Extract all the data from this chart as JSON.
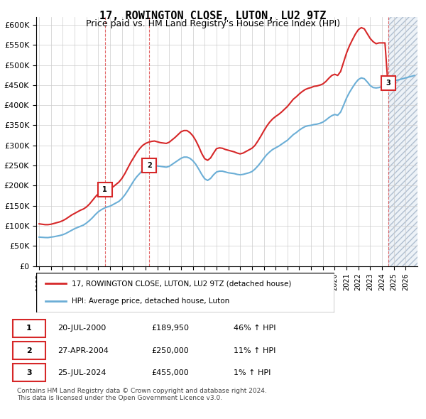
{
  "title": "17, ROWINGTON CLOSE, LUTON, LU2 9TZ",
  "subtitle": "Price paid vs. HM Land Registry's House Price Index (HPI)",
  "title_fontsize": 11,
  "subtitle_fontsize": 9,
  "ylabel": "",
  "ylim": [
    0,
    620000
  ],
  "yticks": [
    0,
    50000,
    100000,
    150000,
    200000,
    250000,
    300000,
    350000,
    400000,
    450000,
    500000,
    550000,
    600000
  ],
  "ytick_labels": [
    "£0",
    "£50K",
    "£100K",
    "£150K",
    "£200K",
    "£250K",
    "£300K",
    "£350K",
    "£400K",
    "£450K",
    "£500K",
    "£550K",
    "£600K"
  ],
  "hpi_line_color": "#6baed6",
  "price_line_color": "#d62728",
  "marker_box_color": "#d62728",
  "background_color": "#ffffff",
  "grid_color": "#cccccc",
  "hatch_color": "#d0d8e8",
  "hpi_data": {
    "years": [
      1995.0,
      1995.25,
      1995.5,
      1995.75,
      1996.0,
      1996.25,
      1996.5,
      1996.75,
      1997.0,
      1997.25,
      1997.5,
      1997.75,
      1998.0,
      1998.25,
      1998.5,
      1998.75,
      1999.0,
      1999.25,
      1999.5,
      1999.75,
      2000.0,
      2000.25,
      2000.5,
      2000.75,
      2001.0,
      2001.25,
      2001.5,
      2001.75,
      2002.0,
      2002.25,
      2002.5,
      2002.75,
      2003.0,
      2003.25,
      2003.5,
      2003.75,
      2004.0,
      2004.25,
      2004.5,
      2004.75,
      2005.0,
      2005.25,
      2005.5,
      2005.75,
      2006.0,
      2006.25,
      2006.5,
      2006.75,
      2007.0,
      2007.25,
      2007.5,
      2007.75,
      2008.0,
      2008.25,
      2008.5,
      2008.75,
      2009.0,
      2009.25,
      2009.5,
      2009.75,
      2010.0,
      2010.25,
      2010.5,
      2010.75,
      2011.0,
      2011.25,
      2011.5,
      2011.75,
      2012.0,
      2012.25,
      2012.5,
      2012.75,
      2013.0,
      2013.25,
      2013.5,
      2013.75,
      2014.0,
      2014.25,
      2014.5,
      2014.75,
      2015.0,
      2015.25,
      2015.5,
      2015.75,
      2016.0,
      2016.25,
      2016.5,
      2016.75,
      2017.0,
      2017.25,
      2017.5,
      2017.75,
      2018.0,
      2018.25,
      2018.5,
      2018.75,
      2019.0,
      2019.25,
      2019.5,
      2019.75,
      2020.0,
      2020.25,
      2020.5,
      2020.75,
      2021.0,
      2021.25,
      2021.5,
      2021.75,
      2022.0,
      2022.25,
      2022.5,
      2022.75,
      2023.0,
      2023.25,
      2023.5,
      2023.75,
      2024.0,
      2024.25,
      2024.5,
      2024.75,
      2025.0,
      2025.25,
      2025.5,
      2025.75,
      2026.0,
      2026.25,
      2026.5,
      2026.75
    ],
    "values": [
      72000,
      71500,
      71000,
      70800,
      72000,
      73000,
      74500,
      76000,
      78000,
      81000,
      85000,
      89000,
      93000,
      96000,
      99000,
      102000,
      107000,
      113000,
      120000,
      128000,
      135000,
      140000,
      144000,
      147000,
      149000,
      153000,
      157000,
      161000,
      168000,
      177000,
      188000,
      200000,
      212000,
      222000,
      230000,
      238000,
      244000,
      247000,
      249000,
      250000,
      249000,
      248000,
      247000,
      246000,
      248000,
      253000,
      258000,
      263000,
      268000,
      271000,
      271000,
      268000,
      262000,
      253000,
      241000,
      228000,
      217000,
      213000,
      218000,
      227000,
      234000,
      236000,
      236000,
      234000,
      232000,
      231000,
      230000,
      228000,
      227000,
      228000,
      230000,
      232000,
      235000,
      241000,
      249000,
      258000,
      268000,
      277000,
      284000,
      290000,
      294000,
      298000,
      303000,
      308000,
      313000,
      320000,
      327000,
      332000,
      338000,
      343000,
      347000,
      349000,
      350000,
      352000,
      353000,
      355000,
      358000,
      363000,
      369000,
      374000,
      377000,
      375000,
      383000,
      400000,
      418000,
      432000,
      444000,
      455000,
      464000,
      468000,
      466000,
      458000,
      449000,
      444000,
      443000,
      444000,
      447000,
      451000,
      455000,
      458000,
      460000,
      462000,
      464000,
      466000,
      468000,
      470000,
      472000,
      474000
    ]
  },
  "price_data": {
    "years": [
      1995.0,
      1995.25,
      1995.5,
      1995.75,
      1996.0,
      1996.25,
      1996.5,
      1996.75,
      1997.0,
      1997.25,
      1997.5,
      1997.75,
      1998.0,
      1998.25,
      1998.5,
      1998.75,
      1999.0,
      1999.25,
      1999.5,
      1999.75,
      2000.0,
      2000.25,
      2000.5,
      2000.75,
      2001.0,
      2001.25,
      2001.5,
      2001.75,
      2002.0,
      2002.25,
      2002.5,
      2002.75,
      2003.0,
      2003.25,
      2003.5,
      2003.75,
      2004.0,
      2004.25,
      2004.5,
      2004.75,
      2005.0,
      2005.25,
      2005.5,
      2005.75,
      2006.0,
      2006.25,
      2006.5,
      2006.75,
      2007.0,
      2007.25,
      2007.5,
      2007.75,
      2008.0,
      2008.25,
      2008.5,
      2008.75,
      2009.0,
      2009.25,
      2009.5,
      2009.75,
      2010.0,
      2010.25,
      2010.5,
      2010.75,
      2011.0,
      2011.25,
      2011.5,
      2011.75,
      2012.0,
      2012.25,
      2012.5,
      2012.75,
      2013.0,
      2013.25,
      2013.5,
      2013.75,
      2014.0,
      2014.25,
      2014.5,
      2014.75,
      2015.0,
      2015.25,
      2015.5,
      2015.75,
      2016.0,
      2016.25,
      2016.5,
      2016.75,
      2017.0,
      2017.25,
      2017.5,
      2017.75,
      2018.0,
      2018.25,
      2018.5,
      2018.75,
      2019.0,
      2019.25,
      2019.5,
      2019.75,
      2020.0,
      2020.25,
      2020.5,
      2020.75,
      2021.0,
      2021.25,
      2021.5,
      2021.75,
      2022.0,
      2022.25,
      2022.5,
      2022.75,
      2023.0,
      2023.25,
      2023.5,
      2023.75,
      2024.0,
      2024.25,
      2024.5,
      2024.75
    ],
    "values": [
      105000,
      104000,
      103000,
      103000,
      104000,
      106000,
      108000,
      110000,
      113000,
      117000,
      122000,
      127000,
      131000,
      135000,
      139000,
      142000,
      147000,
      154000,
      163000,
      172000,
      180000,
      185000,
      189950,
      189950,
      192000,
      197000,
      203000,
      209000,
      218000,
      230000,
      244000,
      258000,
      270000,
      282000,
      292000,
      300000,
      305000,
      308000,
      310000,
      311000,
      309000,
      307000,
      306000,
      305000,
      308000,
      314000,
      320000,
      327000,
      334000,
      337000,
      337000,
      332000,
      324000,
      312000,
      297000,
      280000,
      267000,
      263000,
      269000,
      281000,
      292000,
      294000,
      293000,
      290000,
      288000,
      286000,
      284000,
      281000,
      279000,
      281000,
      285000,
      289000,
      293000,
      300000,
      311000,
      323000,
      336000,
      348000,
      358000,
      366000,
      372000,
      377000,
      383000,
      390000,
      397000,
      406000,
      415000,
      421000,
      428000,
      434000,
      439000,
      442000,
      444000,
      447000,
      448000,
      450000,
      453000,
      459000,
      467000,
      474000,
      477000,
      474000,
      484000,
      507000,
      530000,
      548000,
      563000,
      577000,
      588000,
      593000,
      590000,
      578000,
      566000,
      558000,
      553000,
      555000,
      555000,
      555000,
      453000,
      453000
    ]
  },
  "sale_points": [
    {
      "year": 2000.55,
      "price": 189950,
      "label": "1"
    },
    {
      "year": 2004.32,
      "price": 250000,
      "label": "2"
    },
    {
      "year": 2024.55,
      "price": 455000,
      "label": "3"
    }
  ],
  "hatch_start_year": 2024.55,
  "hatch_end_year": 2027.0,
  "legend_line1": "17, ROWINGTON CLOSE, LUTON, LU2 9TZ (detached house)",
  "legend_line2": "HPI: Average price, detached house, Luton",
  "table_entries": [
    {
      "num": "1",
      "date": "20-JUL-2000",
      "price": "£189,950",
      "change": "46% ↑ HPI"
    },
    {
      "num": "2",
      "date": "27-APR-2004",
      "price": "£250,000",
      "change": "11% ↑ HPI"
    },
    {
      "num": "3",
      "date": "25-JUL-2024",
      "price": "£455,000",
      "change": "1% ↑ HPI"
    }
  ],
  "footer_text": "Contains HM Land Registry data © Crown copyright and database right 2024.\nThis data is licensed under the Open Government Licence v3.0.",
  "xmin": 1994.75,
  "xmax": 2027.0
}
